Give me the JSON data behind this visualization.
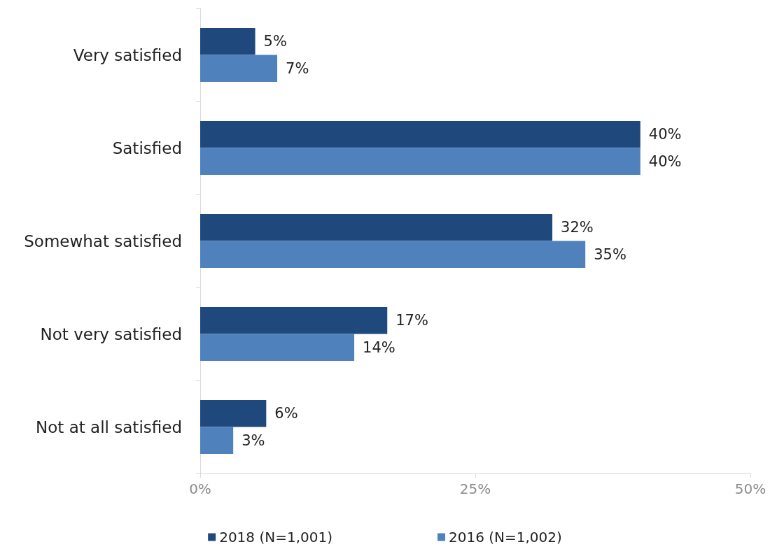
{
  "chart_data": {
    "type": "bar",
    "orientation": "horizontal",
    "categories": [
      "Very satisfied",
      "Satisfied",
      "Somewhat satisfied",
      "Not very satisfied",
      "Not at all satisfied"
    ],
    "series": [
      {
        "name": "2018 (N=1,001)",
        "color": "#1f497d",
        "values": [
          5,
          40,
          32,
          17,
          6
        ],
        "value_labels": [
          "5%",
          "40%",
          "32%",
          "17%",
          "6%"
        ]
      },
      {
        "name": "2016 (N=1,002)",
        "color": "#4f81bd",
        "values": [
          7,
          40,
          35,
          14,
          3
        ],
        "value_labels": [
          "7%",
          "40%",
          "35%",
          "14%",
          "3%"
        ]
      }
    ],
    "xlim": [
      0,
      50
    ],
    "xticks": [
      {
        "value": 0,
        "label": "0%"
      },
      {
        "value": 25,
        "label": "25%"
      },
      {
        "value": 50,
        "label": "50%"
      }
    ],
    "grid": false,
    "legend": "bottom"
  }
}
